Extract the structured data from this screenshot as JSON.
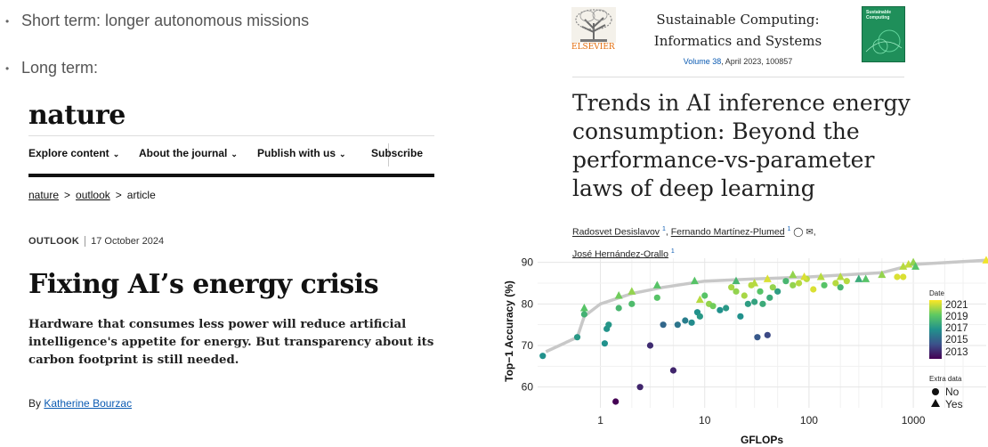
{
  "bullets": [
    "Short term: longer autonomous missions",
    "Long term:"
  ],
  "nature": {
    "logo": "nature",
    "nav": [
      {
        "label": "Explore content",
        "chevron": "⌄"
      },
      {
        "label": "About the journal",
        "chevron": "⌄"
      },
      {
        "label": "Publish with us",
        "chevron": "⌄"
      },
      {
        "label": "Subscribe",
        "chevron": ""
      }
    ],
    "breadcrumbs": [
      "nature",
      "outlook",
      "article"
    ],
    "crumb_sep": ">",
    "section": "OUTLOOK",
    "date": "17 October 2024",
    "headline": "Fixing AI’s energy crisis",
    "standfirst": "Hardware that consumes less power will reduce artificial intelligence's appetite for energy. But transparency about its carbon footprint is still needed.",
    "byline_prefix": "By",
    "author": "Katherine Bourzac"
  },
  "paper": {
    "publisher": "ELSEVIER",
    "journal_line1": "Sustainable Computing:",
    "journal_line2": "Informatics and Systems",
    "volume_link": "Volume 38",
    "volume_rest": ", April 2023, 100857",
    "cover_text": "Sustainable Computing",
    "title": "Trends in AI inference energy consumption: Beyond the performance-vs-parameter laws of deep learning",
    "authors": [
      {
        "name": "Radosvet Desislavov",
        "sup": "1"
      },
      {
        "name": "Fernando Martínez-Plumed",
        "sup": "1"
      },
      {
        "name": "José Hernández-Orallo",
        "sup": "1"
      }
    ]
  },
  "chart_data": {
    "type": "scatter",
    "xlabel": "GFLOPs",
    "ylabel": "Top−1 Accuracy (%)",
    "xscale": "log",
    "xlim": [
      0.25,
      5000
    ],
    "ylim": [
      55,
      91
    ],
    "xticks": [
      1,
      10,
      100,
      1000
    ],
    "xtick_labels": [
      "1",
      "10",
      "100",
      "1000"
    ],
    "yticks": [
      60,
      70,
      80,
      90
    ],
    "colorbar_title": "Date",
    "colorbar_ticks": [
      "2021",
      "2019",
      "2017",
      "2015",
      "2013"
    ],
    "shape_legend_title": "Extra data",
    "shape_legend": [
      {
        "label": "No",
        "shape": "circle"
      },
      {
        "label": "Yes",
        "shape": "triangle"
      }
    ],
    "frontier": [
      [
        0.3,
        68.5
      ],
      [
        0.6,
        72
      ],
      [
        0.7,
        77
      ],
      [
        1,
        80
      ],
      [
        2,
        82.5
      ],
      [
        4,
        84
      ],
      [
        10,
        85.5
      ],
      [
        30,
        86
      ],
      [
        100,
        86.5
      ],
      [
        500,
        87.5
      ],
      [
        1000,
        89.5
      ],
      [
        5000,
        90.5
      ]
    ],
    "points": [
      [
        0.28,
        67.5,
        2017.5,
        "circle"
      ],
      [
        0.6,
        72,
        2017.8,
        "circle"
      ],
      [
        0.7,
        77.5,
        2018.8,
        "circle"
      ],
      [
        1.1,
        70.5,
        2017.5,
        "circle"
      ],
      [
        1.15,
        74,
        2017.6,
        "circle"
      ],
      [
        1.2,
        75,
        2017.7,
        "circle"
      ],
      [
        1.4,
        56.5,
        2013.0,
        "circle"
      ],
      [
        1.5,
        79,
        2019.0,
        "circle"
      ],
      [
        2.4,
        60,
        2014.0,
        "circle"
      ],
      [
        2.0,
        80,
        2019.2,
        "circle"
      ],
      [
        3.0,
        70,
        2014.2,
        "circle"
      ],
      [
        3.5,
        81.5,
        2019.5,
        "circle"
      ],
      [
        4.0,
        75,
        2016.0,
        "circle"
      ],
      [
        5.0,
        64,
        2014.0,
        "circle"
      ],
      [
        5.5,
        75,
        2016.5,
        "circle"
      ],
      [
        6.5,
        76,
        2016.8,
        "circle"
      ],
      [
        7.5,
        75.5,
        2017.3,
        "circle"
      ],
      [
        8.5,
        78,
        2017.5,
        "circle"
      ],
      [
        9.0,
        77,
        2017.8,
        "circle"
      ],
      [
        10,
        82,
        2019.5,
        "circle"
      ],
      [
        11,
        80,
        2020.5,
        "circle"
      ],
      [
        12,
        79.5,
        2020.0,
        "circle"
      ],
      [
        14,
        78.5,
        2017.5,
        "circle"
      ],
      [
        16,
        79,
        2017.8,
        "circle"
      ],
      [
        18,
        84,
        2020.8,
        "circle"
      ],
      [
        20,
        83,
        2020.5,
        "circle"
      ],
      [
        22,
        77,
        2017.5,
        "circle"
      ],
      [
        24,
        82,
        2020.8,
        "circle"
      ],
      [
        26,
        80,
        2018.0,
        "circle"
      ],
      [
        28,
        84.5,
        2021.0,
        "circle"
      ],
      [
        30,
        80.5,
        2018.2,
        "circle"
      ],
      [
        32,
        72,
        2015.5,
        "circle"
      ],
      [
        34,
        83,
        2019.5,
        "circle"
      ],
      [
        36,
        80,
        2018.5,
        "circle"
      ],
      [
        40,
        72.5,
        2015.0,
        "circle"
      ],
      [
        42,
        81.5,
        2018.5,
        "circle"
      ],
      [
        45,
        84,
        2020.5,
        "circle"
      ],
      [
        50,
        83,
        2018.0,
        "circle"
      ],
      [
        60,
        85.5,
        2019.0,
        "circle"
      ],
      [
        70,
        84.5,
        2020.5,
        "circle"
      ],
      [
        80,
        85,
        2021.0,
        "circle"
      ],
      [
        95,
        86,
        2021.0,
        "circle"
      ],
      [
        110,
        83.5,
        2021.5,
        "circle"
      ],
      [
        140,
        84.5,
        2019.5,
        "circle"
      ],
      [
        180,
        85,
        2021.0,
        "circle"
      ],
      [
        200,
        84,
        2019.0,
        "circle"
      ],
      [
        230,
        85.5,
        2021.0,
        "circle"
      ],
      [
        700,
        86.5,
        2021.5,
        "circle"
      ],
      [
        800,
        86.5,
        2021.5,
        "circle"
      ],
      [
        0.7,
        79,
        2019.5,
        "triangle"
      ],
      [
        1.5,
        82,
        2020.0,
        "triangle"
      ],
      [
        2,
        83,
        2020.5,
        "triangle"
      ],
      [
        3.5,
        84.5,
        2019.5,
        "triangle"
      ],
      [
        8,
        85.5,
        2019.5,
        "triangle"
      ],
      [
        9,
        81,
        2021.0,
        "triangle"
      ],
      [
        20,
        85.5,
        2019.0,
        "triangle"
      ],
      [
        30,
        85,
        2021.0,
        "triangle"
      ],
      [
        40,
        86,
        2021.5,
        "triangle"
      ],
      [
        70,
        87,
        2020.5,
        "triangle"
      ],
      [
        90,
        86.5,
        2021.5,
        "triangle"
      ],
      [
        130,
        86.5,
        2021.0,
        "triangle"
      ],
      [
        200,
        86.5,
        2021.0,
        "triangle"
      ],
      [
        300,
        86,
        2018.5,
        "triangle"
      ],
      [
        350,
        86,
        2019.5,
        "triangle"
      ],
      [
        500,
        87,
        2020.5,
        "triangle"
      ],
      [
        800,
        89,
        2021.0,
        "triangle"
      ],
      [
        900,
        89.5,
        2021.2,
        "triangle"
      ],
      [
        1000,
        90,
        2020.5,
        "triangle"
      ],
      [
        1050,
        89,
        2019.5,
        "triangle"
      ],
      [
        5000,
        90.5,
        2021.8,
        "triangle"
      ]
    ]
  }
}
